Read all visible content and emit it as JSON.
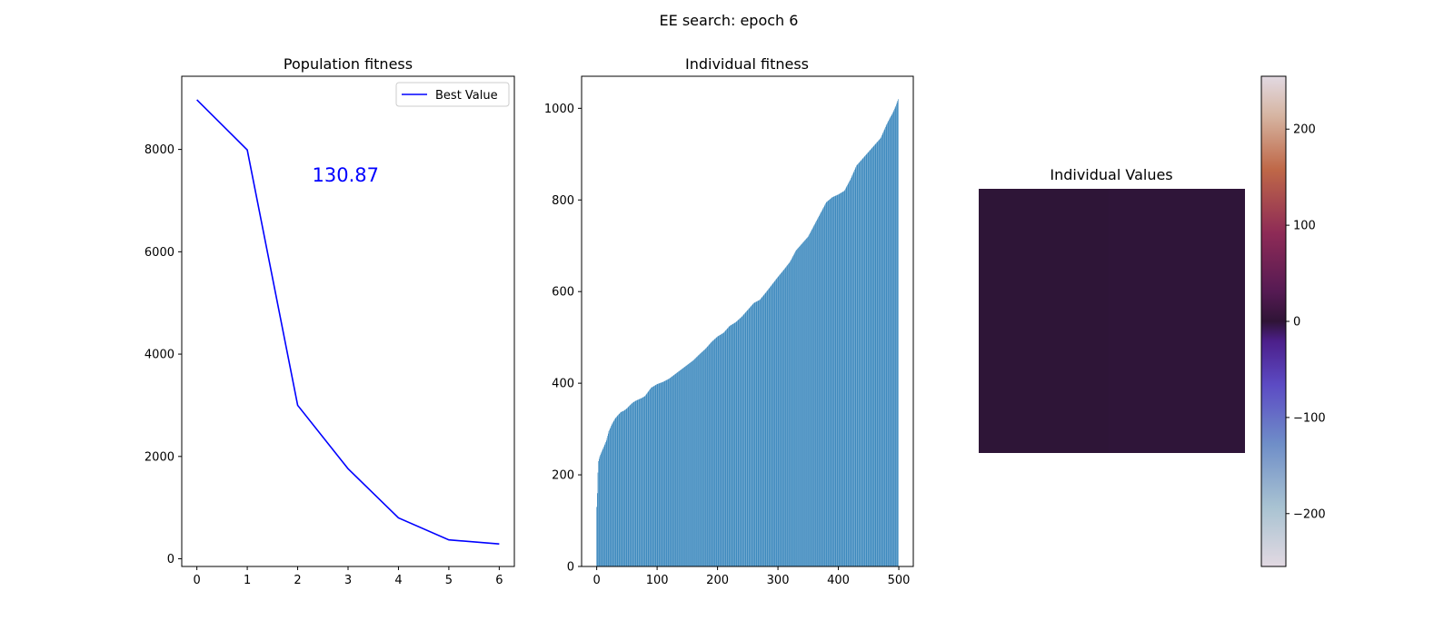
{
  "figure": {
    "suptitle": "EE search: epoch 6"
  },
  "chart_data": [
    {
      "type": "line",
      "title": "Population fitness",
      "xlabel": "",
      "ylabel": "",
      "x": [
        0,
        1,
        2,
        3,
        4,
        5,
        6
      ],
      "series": [
        {
          "name": "Best Value",
          "values": [
            8970,
            7990,
            3000,
            1760,
            800,
            370,
            290
          ],
          "color": "#0000ff"
        }
      ],
      "xlim": [
        -0.3,
        6.3
      ],
      "ylim": [
        -150,
        9430
      ],
      "xticks": [
        0,
        1,
        2,
        3,
        4,
        5,
        6
      ],
      "yticks": [
        0,
        2000,
        4000,
        6000,
        8000
      ],
      "annotation": {
        "text": "130.87",
        "x": 2.95,
        "y": 7500,
        "color": "#0000ff"
      },
      "legend": "top-right",
      "grid": false
    },
    {
      "type": "bar",
      "title": "Individual fitness",
      "xlabel": "",
      "ylabel": "",
      "n_bars": 500,
      "color": "#1f77b4",
      "values_at": {
        "x": [
          0,
          1,
          2,
          3,
          5,
          8,
          12,
          16,
          20,
          25,
          30,
          35,
          40,
          45,
          50,
          55,
          60,
          65,
          70,
          75,
          80,
          90,
          100,
          110,
          120,
          130,
          140,
          150,
          160,
          170,
          180,
          190,
          200,
          210,
          220,
          230,
          240,
          250,
          260,
          270,
          280,
          290,
          300,
          310,
          320,
          330,
          340,
          350,
          360,
          370,
          380,
          390,
          400,
          410,
          420,
          430,
          440,
          450,
          460,
          470,
          480,
          485,
          490,
          495,
          499
        ],
        "y": [
          130,
          160,
          205,
          230,
          240,
          250,
          262,
          275,
          295,
          310,
          322,
          330,
          337,
          340,
          345,
          352,
          358,
          362,
          365,
          368,
          372,
          390,
          398,
          403,
          410,
          420,
          430,
          440,
          450,
          463,
          475,
          490,
          502,
          510,
          525,
          533,
          545,
          560,
          575,
          582,
          598,
          615,
          632,
          648,
          665,
          690,
          705,
          720,
          745,
          770,
          795,
          806,
          812,
          820,
          845,
          875,
          890,
          905,
          920,
          935,
          965,
          978,
          990,
          1005,
          1020
        ]
      },
      "xlim": [
        -25,
        524
      ],
      "ylim": [
        0,
        1070
      ],
      "xticks": [
        0,
        100,
        200,
        300,
        400,
        500
      ],
      "yticks": [
        0,
        200,
        400,
        600,
        800,
        1000
      ]
    },
    {
      "type": "heatmap",
      "title": "Individual Values",
      "cmap": "twilight",
      "value_approx": 5,
      "colorbar_range": [
        -255,
        255
      ],
      "colorbar_ticks": [
        -200,
        -100,
        0,
        100,
        200
      ]
    }
  ]
}
